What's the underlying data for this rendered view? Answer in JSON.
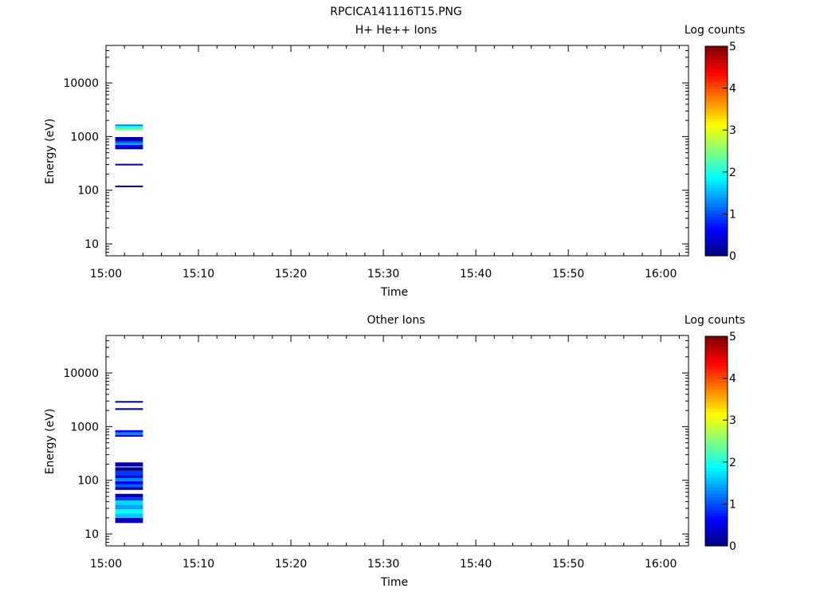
{
  "figure_title": "RPCICA141116T15.PNG",
  "chart_data": [
    {
      "type": "heatmap",
      "title": "H+ He++ Ions",
      "xlabel": "Time",
      "ylabel": "Energy (eV)",
      "x_ticks": [
        "15:00",
        "15:10",
        "15:20",
        "15:30",
        "15:40",
        "15:50",
        "16:00"
      ],
      "xlim": [
        "15:00",
        "16:03"
      ],
      "y_scale": "log",
      "ylim": [
        6,
        50000
      ],
      "y_ticks": [
        "10",
        "100",
        "1000",
        "10000"
      ],
      "colorbar": {
        "label": "Log counts",
        "min": 0,
        "max": 5,
        "ticks": [
          "0",
          "1",
          "2",
          "3",
          "4",
          "5"
        ]
      },
      "cells": [
        {
          "t_start": "15:01",
          "t_end": "15:04",
          "e_low": 115,
          "e_high": 122,
          "log_counts": 0.1
        },
        {
          "t_start": "15:01",
          "t_end": "15:04",
          "e_low": 290,
          "e_high": 310,
          "log_counts": 0.1
        },
        {
          "t_start": "15:01",
          "t_end": "15:04",
          "e_low": 580,
          "e_high": 640,
          "log_counts": 0.1
        },
        {
          "t_start": "15:01",
          "t_end": "15:04",
          "e_low": 640,
          "e_high": 700,
          "log_counts": 0.6
        },
        {
          "t_start": "15:01",
          "t_end": "15:04",
          "e_low": 700,
          "e_high": 760,
          "log_counts": 1.4
        },
        {
          "t_start": "15:01",
          "t_end": "15:04",
          "e_low": 760,
          "e_high": 830,
          "log_counts": 1.0
        },
        {
          "t_start": "15:01",
          "t_end": "15:04",
          "e_low": 830,
          "e_high": 980,
          "log_counts": 0.2
        },
        {
          "t_start": "15:01",
          "t_end": "15:04",
          "e_low": 1320,
          "e_high": 1450,
          "log_counts": 2.4
        },
        {
          "t_start": "15:01",
          "t_end": "15:04",
          "e_low": 1450,
          "e_high": 1570,
          "log_counts": 1.9
        },
        {
          "t_start": "15:01",
          "t_end": "15:04",
          "e_low": 1570,
          "e_high": 1680,
          "log_counts": 1.3
        }
      ]
    },
    {
      "type": "heatmap",
      "title": "Other Ions",
      "xlabel": "Time",
      "ylabel": "Energy (eV)",
      "x_ticks": [
        "15:00",
        "15:10",
        "15:20",
        "15:30",
        "15:40",
        "15:50",
        "16:00"
      ],
      "xlim": [
        "15:00",
        "16:03"
      ],
      "y_scale": "log",
      "ylim": [
        6,
        50000
      ],
      "y_ticks": [
        "10",
        "100",
        "1000",
        "10000"
      ],
      "colorbar": {
        "label": "Log counts",
        "min": 0,
        "max": 5,
        "ticks": [
          "0",
          "1",
          "2",
          "3",
          "4",
          "5"
        ]
      },
      "cells": [
        {
          "t_start": "15:01",
          "t_end": "15:04",
          "e_low": 16,
          "e_high": 20,
          "log_counts": 0.3
        },
        {
          "t_start": "15:01",
          "t_end": "15:04",
          "e_low": 20,
          "e_high": 24,
          "log_counts": 1.6
        },
        {
          "t_start": "15:01",
          "t_end": "15:04",
          "e_low": 24,
          "e_high": 29,
          "log_counts": 1.9
        },
        {
          "t_start": "15:01",
          "t_end": "15:04",
          "e_low": 29,
          "e_high": 35,
          "log_counts": 1.4
        },
        {
          "t_start": "15:01",
          "t_end": "15:04",
          "e_low": 35,
          "e_high": 42,
          "log_counts": 1.7
        },
        {
          "t_start": "15:01",
          "t_end": "15:04",
          "e_low": 42,
          "e_high": 48,
          "log_counts": 0.9
        },
        {
          "t_start": "15:01",
          "t_end": "15:04",
          "e_low": 48,
          "e_high": 56,
          "log_counts": 0.2
        },
        {
          "t_start": "15:01",
          "t_end": "15:04",
          "e_low": 66,
          "e_high": 75,
          "log_counts": 0.2
        },
        {
          "t_start": "15:01",
          "t_end": "15:04",
          "e_low": 75,
          "e_high": 85,
          "log_counts": 1.1
        },
        {
          "t_start": "15:01",
          "t_end": "15:04",
          "e_low": 85,
          "e_high": 96,
          "log_counts": 0.6
        },
        {
          "t_start": "15:01",
          "t_end": "15:04",
          "e_low": 96,
          "e_high": 110,
          "log_counts": 1.3
        },
        {
          "t_start": "15:01",
          "t_end": "15:04",
          "e_low": 110,
          "e_high": 125,
          "log_counts": 0.5
        },
        {
          "t_start": "15:01",
          "t_end": "15:04",
          "e_low": 125,
          "e_high": 150,
          "log_counts": 0.9
        },
        {
          "t_start": "15:01",
          "t_end": "15:04",
          "e_low": 150,
          "e_high": 175,
          "log_counts": 0.1
        },
        {
          "t_start": "15:01",
          "t_end": "15:04",
          "e_low": 180,
          "e_high": 215,
          "log_counts": 0.2
        },
        {
          "t_start": "15:01",
          "t_end": "15:04",
          "e_low": 650,
          "e_high": 700,
          "log_counts": 0.4
        },
        {
          "t_start": "15:01",
          "t_end": "15:04",
          "e_low": 700,
          "e_high": 780,
          "log_counts": 1.3
        },
        {
          "t_start": "15:01",
          "t_end": "15:04",
          "e_low": 780,
          "e_high": 860,
          "log_counts": 0.7
        },
        {
          "t_start": "15:01",
          "t_end": "15:04",
          "e_low": 2050,
          "e_high": 2200,
          "log_counts": 0.1
        },
        {
          "t_start": "15:01",
          "t_end": "15:04",
          "e_low": 2800,
          "e_high": 3000,
          "log_counts": 0.1
        }
      ]
    }
  ]
}
